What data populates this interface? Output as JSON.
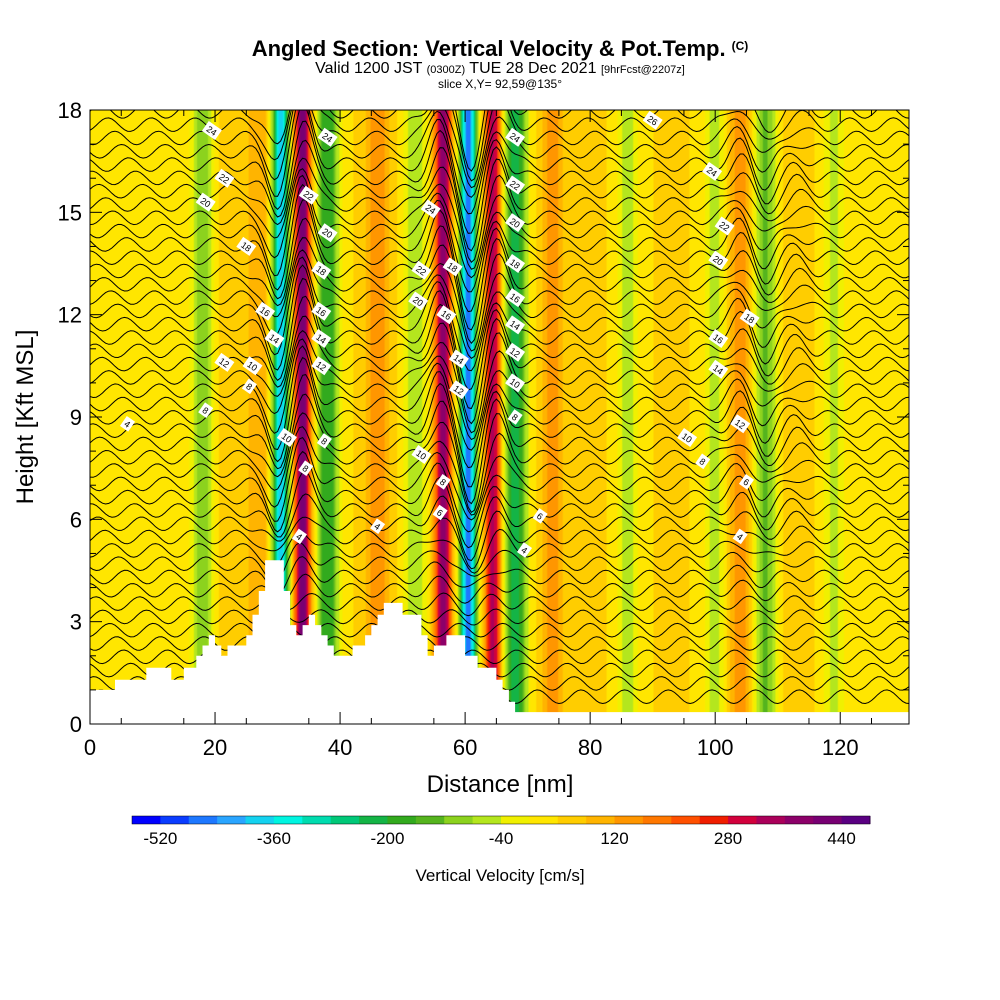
{
  "header": {
    "title": "Angled Section: Vertical Velocity & Pot.Temp.",
    "copyright": "(C)",
    "valid_prefix": "Valid 1200 JST",
    "valid_utc": "(0300Z)",
    "valid_date": "TUE 28 Dec 2021",
    "forecast": "[9hrFcst@2207z]",
    "slice": "slice X,Y= 92,59@135°"
  },
  "chart_data": {
    "type": "heatmap",
    "title": "Angled Section: Vertical Velocity & Pot.Temp.",
    "xlabel": "Distance [nm]",
    "ylabel": "Height [Kft MSL]",
    "xlim": [
      0,
      131
    ],
    "ylim": [
      0,
      18
    ],
    "x_ticks": [
      "0",
      "20",
      "40",
      "60",
      "80",
      "100",
      "120"
    ],
    "y_ticks": [
      "0",
      "3",
      "6",
      "9",
      "12",
      "15",
      "18"
    ],
    "colorbar": {
      "label": "Vertical Velocity [cm/s]",
      "ticks": [
        "-520",
        "-360",
        "-200",
        "-40",
        "120",
        "280",
        "440"
      ],
      "colors": [
        "#0000ff",
        "#0a3cff",
        "#1e78ff",
        "#2aa5ff",
        "#14d2f0",
        "#00f5e1",
        "#00dcaf",
        "#00c878",
        "#14b446",
        "#32aa1e",
        "#55b41e",
        "#8cd21e",
        "#b4e61e",
        "#f0f000",
        "#ffe600",
        "#ffcd00",
        "#ffb400",
        "#ff9600",
        "#ff7800",
        "#ff5000",
        "#f01e00",
        "#d2003c",
        "#aa005a",
        "#8c0069",
        "#780073",
        "#5a0082"
      ]
    },
    "velocity_bands": [
      {
        "x": 18,
        "w": -120
      },
      {
        "x": 22,
        "w": 80
      },
      {
        "x": 27,
        "w": 120
      },
      {
        "x": 30.5,
        "w": -400
      },
      {
        "x": 34,
        "w": 420
      },
      {
        "x": 38,
        "w": -200
      },
      {
        "x": 46,
        "w": 160
      },
      {
        "x": 52,
        "w": -80
      },
      {
        "x": 56.5,
        "w": 380
      },
      {
        "x": 60.5,
        "w": -470
      },
      {
        "x": 64.5,
        "w": 340
      },
      {
        "x": 68,
        "w": -240
      },
      {
        "x": 74,
        "w": 140
      },
      {
        "x": 80,
        "w": 60
      },
      {
        "x": 86,
        "w": -60
      },
      {
        "x": 93,
        "w": 50
      },
      {
        "x": 100,
        "w": -60
      },
      {
        "x": 104,
        "w": 150
      },
      {
        "x": 108,
        "w": -130
      },
      {
        "x": 113,
        "w": 80
      },
      {
        "x": 119,
        "w": -50
      },
      {
        "x": 126,
        "w": 40
      }
    ],
    "terrain": {
      "x": [
        0,
        4,
        4,
        9,
        9,
        13,
        13,
        15,
        15,
        17,
        17,
        18,
        18,
        19,
        19,
        20,
        20,
        21,
        21,
        22,
        22,
        25,
        25,
        26,
        26,
        27,
        27,
        28,
        28,
        31,
        31,
        32,
        32,
        33,
        33,
        34,
        34,
        35,
        35,
        36,
        36,
        37,
        37,
        38,
        38,
        39,
        39,
        40,
        40,
        42,
        42,
        44,
        44,
        45,
        45,
        46,
        46,
        47,
        47,
        48,
        48,
        49,
        49,
        50,
        50,
        53,
        53,
        54,
        54,
        55,
        55,
        57,
        57,
        60,
        60,
        62,
        62,
        65,
        65,
        66,
        66,
        67,
        67,
        68,
        68,
        69,
        69,
        70,
        70,
        71,
        71,
        72,
        72,
        131
      ],
      "y": [
        1.0,
        1.0,
        1.3,
        1.3,
        1.65,
        1.65,
        1.3,
        1.3,
        1.65,
        1.65,
        2.0,
        2.0,
        2.3,
        2.3,
        2.6,
        2.6,
        2.3,
        2.3,
        2.0,
        2.0,
        2.3,
        2.3,
        2.6,
        2.6,
        3.2,
        3.2,
        3.9,
        3.9,
        4.8,
        4.8,
        3.9,
        3.9,
        2.9,
        2.9,
        2.6,
        2.6,
        2.9,
        2.9,
        3.2,
        3.2,
        2.9,
        2.9,
        2.6,
        2.6,
        2.3,
        2.3,
        2.0,
        2.0,
        2.0,
        2.0,
        2.3,
        2.3,
        2.6,
        2.6,
        2.9,
        2.9,
        3.2,
        3.2,
        3.55,
        3.55,
        3.55,
        3.55,
        3.55,
        3.55,
        3.2,
        3.2,
        2.6,
        2.6,
        2.0,
        2.0,
        2.3,
        2.3,
        2.6,
        2.6,
        2.0,
        2.0,
        1.65,
        1.65,
        1.3,
        1.3,
        1.0,
        1.0,
        0.65,
        0.65,
        0.35,
        0.35,
        0.35,
        0.35,
        0.35,
        0.35,
        0.35,
        0.35,
        0.35,
        0.35
      ]
    },
    "theta_levels": [
      4,
      6,
      8,
      10,
      12,
      14,
      16,
      18,
      20,
      22,
      24,
      26
    ],
    "contour_labels": [
      {
        "text": "4",
        "x": 6,
        "y": 8.8
      },
      {
        "text": "8",
        "x": 18.5,
        "y": 9.2
      },
      {
        "text": "8",
        "x": 25.5,
        "y": 9.9
      },
      {
        "text": "10",
        "x": 26,
        "y": 10.5
      },
      {
        "text": "12",
        "x": 21.5,
        "y": 10.6
      },
      {
        "text": "14",
        "x": 29.5,
        "y": 11.3
      },
      {
        "text": "16",
        "x": 28,
        "y": 12.1
      },
      {
        "text": "18",
        "x": 25,
        "y": 14.0
      },
      {
        "text": "20",
        "x": 18.5,
        "y": 15.3
      },
      {
        "text": "22",
        "x": 21.5,
        "y": 16.0
      },
      {
        "text": "24",
        "x": 19.5,
        "y": 17.4
      },
      {
        "text": "10",
        "x": 31.5,
        "y": 8.4
      },
      {
        "text": "8",
        "x": 34.5,
        "y": 7.5
      },
      {
        "text": "4",
        "x": 33.5,
        "y": 5.5
      },
      {
        "text": "8",
        "x": 37.5,
        "y": 8.3
      },
      {
        "text": "12",
        "x": 37,
        "y": 10.5
      },
      {
        "text": "14",
        "x": 37,
        "y": 11.3
      },
      {
        "text": "16",
        "x": 37,
        "y": 12.1
      },
      {
        "text": "18",
        "x": 37,
        "y": 13.3
      },
      {
        "text": "20",
        "x": 38,
        "y": 14.4
      },
      {
        "text": "22",
        "x": 35,
        "y": 15.5
      },
      {
        "text": "24",
        "x": 38,
        "y": 17.2
      },
      {
        "text": "4",
        "x": 46,
        "y": 5.8
      },
      {
        "text": "6",
        "x": 56,
        "y": 6.2
      },
      {
        "text": "8",
        "x": 56.5,
        "y": 7.1
      },
      {
        "text": "10",
        "x": 53,
        "y": 7.9
      },
      {
        "text": "12",
        "x": 59,
        "y": 9.8
      },
      {
        "text": "14",
        "x": 59,
        "y": 10.7
      },
      {
        "text": "16",
        "x": 57,
        "y": 12.0
      },
      {
        "text": "18",
        "x": 58,
        "y": 13.4
      },
      {
        "text": "20",
        "x": 52.5,
        "y": 12.4
      },
      {
        "text": "22",
        "x": 53,
        "y": 13.3
      },
      {
        "text": "24",
        "x": 54.5,
        "y": 15.1
      },
      {
        "text": "24",
        "x": 68,
        "y": 17.2
      },
      {
        "text": "22",
        "x": 68,
        "y": 15.8
      },
      {
        "text": "20",
        "x": 68,
        "y": 14.7
      },
      {
        "text": "18",
        "x": 68,
        "y": 13.5
      },
      {
        "text": "16",
        "x": 68,
        "y": 12.5
      },
      {
        "text": "14",
        "x": 68,
        "y": 11.7
      },
      {
        "text": "12",
        "x": 68,
        "y": 10.9
      },
      {
        "text": "10",
        "x": 68,
        "y": 10.0
      },
      {
        "text": "8",
        "x": 68,
        "y": 9.0
      },
      {
        "text": "6",
        "x": 72,
        "y": 6.1
      },
      {
        "text": "4",
        "x": 69.5,
        "y": 5.1
      },
      {
        "text": "26",
        "x": 90,
        "y": 17.7
      },
      {
        "text": "24",
        "x": 99.5,
        "y": 16.2
      },
      {
        "text": "22",
        "x": 101.5,
        "y": 14.6
      },
      {
        "text": "20",
        "x": 100.5,
        "y": 13.6
      },
      {
        "text": "18",
        "x": 105.5,
        "y": 11.9
      },
      {
        "text": "16",
        "x": 100.5,
        "y": 11.3
      },
      {
        "text": "14",
        "x": 100.5,
        "y": 10.4
      },
      {
        "text": "12",
        "x": 104,
        "y": 8.8
      },
      {
        "text": "10",
        "x": 95.5,
        "y": 8.4
      },
      {
        "text": "8",
        "x": 98,
        "y": 7.7
      },
      {
        "text": "6",
        "x": 105,
        "y": 7.1
      },
      {
        "text": "4",
        "x": 104,
        "y": 5.5
      }
    ]
  }
}
